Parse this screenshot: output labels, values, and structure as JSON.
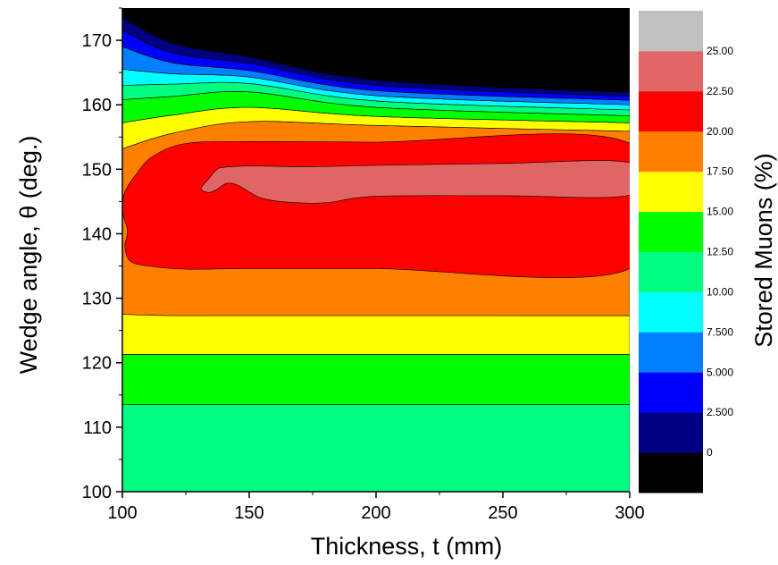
{
  "chart_data": {
    "type": "contour",
    "xlabel": "Thickness, t (mm)",
    "ylabel": "Wedge angle, θ (deg.)",
    "colorbar_label": "Stored Muons (%)",
    "xlim": [
      100,
      300
    ],
    "ylim": [
      100,
      175
    ],
    "xticks": [
      "100",
      "150",
      "200",
      "250",
      "300"
    ],
    "yticks": [
      "100",
      "110",
      "120",
      "130",
      "140",
      "150",
      "160",
      "170"
    ],
    "levels": [
      {
        "label": "",
        "color": "#000000"
      },
      {
        "label": "0",
        "color": "#000080"
      },
      {
        "label": "2.500",
        "color": "#0000ff"
      },
      {
        "label": "5.000",
        "color": "#0080ff"
      },
      {
        "label": "7.500",
        "color": "#00ffff"
      },
      {
        "label": "10.00",
        "color": "#00ff80"
      },
      {
        "label": "12.50",
        "color": "#00ff00"
      },
      {
        "label": "15.00",
        "color": "#ffff00"
      },
      {
        "label": "17.50",
        "color": "#ff8000"
      },
      {
        "label": "20.00",
        "color": "#ff0000"
      },
      {
        "label": "22.50",
        "color": "#e06666"
      },
      {
        "label": "25.00",
        "color": "#c0c0c0"
      }
    ],
    "bands": [
      {
        "level": 5,
        "x": [
          100,
          300
        ],
        "y": [
          [
            100,
            100
          ],
          [
            113.5,
            113.5
          ]
        ]
      },
      {
        "level": 6,
        "x": [
          100,
          300
        ],
        "y": [
          [
            113.5,
            113.5
          ],
          [
            121.3,
            121.3
          ]
        ]
      },
      {
        "level": 7,
        "x": [
          100,
          300
        ],
        "y": [
          [
            121.3,
            121.3
          ],
          [
            127.5,
            127.3
          ]
        ]
      },
      {
        "level": 8,
        "x": [
          100,
          120,
          150,
          200,
          300
        ],
        "y": [
          [
            127.5,
            127.3,
            127.3,
            127.3,
            127.3
          ],
          [
            153.2,
            155.6,
            157.4,
            156.8,
            155.9
          ]
        ]
      },
      {
        "level": 7,
        "x": [
          100,
          120,
          150,
          200,
          300
        ],
        "y": [
          [
            153.2,
            155.6,
            157.4,
            156.8,
            155.9
          ],
          [
            157.2,
            158.4,
            159.6,
            158.2,
            157.2
          ]
        ]
      },
      {
        "level": 6,
        "x": [
          100,
          120,
          150,
          200,
          300
        ],
        "y": [
          [
            157.2,
            158.4,
            159.6,
            158.2,
            157.2
          ],
          [
            160.8,
            161.3,
            162.0,
            159.6,
            158.3
          ]
        ]
      },
      {
        "level": 5,
        "x": [
          100,
          120,
          150,
          200,
          300
        ],
        "y": [
          [
            160.8,
            161.3,
            162.0,
            159.6,
            158.3
          ],
          [
            163.0,
            163.2,
            163.3,
            160.6,
            159.2
          ]
        ]
      },
      {
        "level": 4,
        "x": [
          100,
          120,
          150,
          200,
          300
        ],
        "y": [
          [
            163.0,
            163.2,
            163.3,
            160.6,
            159.2
          ],
          [
            165.5,
            164.8,
            164.3,
            161.4,
            160.0
          ]
        ]
      },
      {
        "level": 3,
        "x": [
          100,
          120,
          150,
          200,
          300
        ],
        "y": [
          [
            165.5,
            164.8,
            164.3,
            161.4,
            160.0
          ],
          [
            169.0,
            166.5,
            165.3,
            162.2,
            160.7
          ]
        ]
      },
      {
        "level": 2,
        "x": [
          100,
          120,
          150,
          200,
          300
        ],
        "y": [
          [
            169.0,
            166.5,
            165.3,
            162.2,
            160.7
          ],
          [
            171.5,
            168.0,
            166.4,
            163.0,
            161.3
          ]
        ]
      },
      {
        "level": 1,
        "x": [
          100,
          120,
          150,
          200,
          300
        ],
        "y": [
          [
            171.5,
            168.0,
            166.4,
            163.0,
            161.3
          ],
          [
            173.5,
            169.5,
            167.4,
            163.8,
            161.9
          ]
        ]
      },
      {
        "level": 0,
        "x": [
          100,
          120,
          150,
          200,
          300
        ],
        "y": [
          [
            173.5,
            169.5,
            167.4,
            163.8,
            161.9
          ],
          [
            175,
            175,
            175,
            175,
            175
          ]
        ]
      }
    ],
    "regions": [
      {
        "level": 9,
        "points": [
          [
            103,
            135.8
          ],
          [
            110,
            135.0
          ],
          [
            125,
            134.5
          ],
          [
            150,
            134.6
          ],
          [
            200,
            134.6
          ],
          [
            300,
            134.6
          ],
          [
            300,
            154.0
          ],
          [
            200,
            154.2
          ],
          [
            150,
            154.3
          ],
          [
            125,
            154.0
          ],
          [
            112,
            152.0
          ],
          [
            106,
            149.5
          ],
          [
            101,
            146.5
          ],
          [
            100,
            143.5
          ],
          [
            102,
            140.5
          ],
          [
            101,
            138.0
          ]
        ]
      },
      {
        "level": 10,
        "points": [
          [
            131,
            147.0
          ],
          [
            134,
            148.5
          ],
          [
            137,
            149.9
          ],
          [
            140,
            150.3
          ],
          [
            150,
            150.5
          ],
          [
            175,
            150.4
          ],
          [
            200,
            150.6
          ],
          [
            250,
            150.9
          ],
          [
            300,
            151.0
          ],
          [
            300,
            146.0
          ],
          [
            250,
            145.9
          ],
          [
            200,
            145.8
          ],
          [
            180,
            144.8
          ],
          [
            165,
            144.9
          ],
          [
            155,
            145.5
          ],
          [
            150,
            146.5
          ],
          [
            145,
            147.6
          ],
          [
            141,
            147.8
          ],
          [
            137,
            146.8
          ],
          [
            134,
            146.4
          ]
        ]
      }
    ]
  }
}
